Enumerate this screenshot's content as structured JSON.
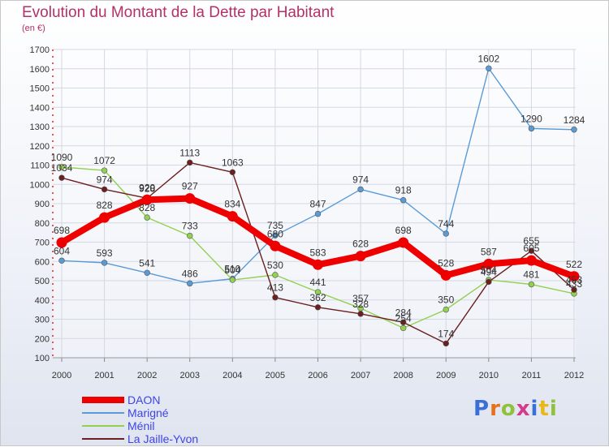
{
  "header": {
    "title": "Evolution du Montant de la Dette par Habitant",
    "subtitle": "(en €)"
  },
  "brand": {
    "text": "Proxiti",
    "letter_colors": [
      "#3b6fd6",
      "#e8701a",
      "#8fc13a",
      "#d63a8a",
      "#3b6fd6",
      "#e8b81a",
      "#8fc13a"
    ]
  },
  "chart_data": {
    "type": "line",
    "x": [
      "2000",
      "2001",
      "2002",
      "2003",
      "2004",
      "2005",
      "2006",
      "2007",
      "2008",
      "2009",
      "2010",
      "2011",
      "2012"
    ],
    "ylim": [
      100,
      1700
    ],
    "yticks": [
      100,
      200,
      300,
      400,
      500,
      600,
      700,
      800,
      900,
      1000,
      1100,
      1200,
      1300,
      1400,
      1500,
      1600,
      1700
    ],
    "grid": true,
    "legend_placement": "bottom-left",
    "series": [
      {
        "name": "DAON",
        "color": "#ee0000",
        "highlight": true,
        "values": [
          698,
          828,
          920,
          927,
          834,
          680,
          583,
          628,
          698,
          528,
          587,
          605,
          522
        ]
      },
      {
        "name": "Marigné",
        "color": "#5b9bd5",
        "values": [
          604,
          593,
          541,
          486,
          510,
          735,
          847,
          974,
          918,
          744,
          1602,
          1290,
          1284
        ]
      },
      {
        "name": "Ménil",
        "color": "#92d050",
        "values": [
          1090,
          1072,
          828,
          733,
          504,
          530,
          441,
          357,
          254,
          350,
          504,
          481,
          433
        ]
      },
      {
        "name": "La Jaille-Yvon",
        "color": "#6b1f1f",
        "values": [
          1034,
          974,
          928,
          1113,
          1063,
          413,
          362,
          328,
          284,
          174,
          494,
          655,
          453
        ]
      }
    ]
  }
}
